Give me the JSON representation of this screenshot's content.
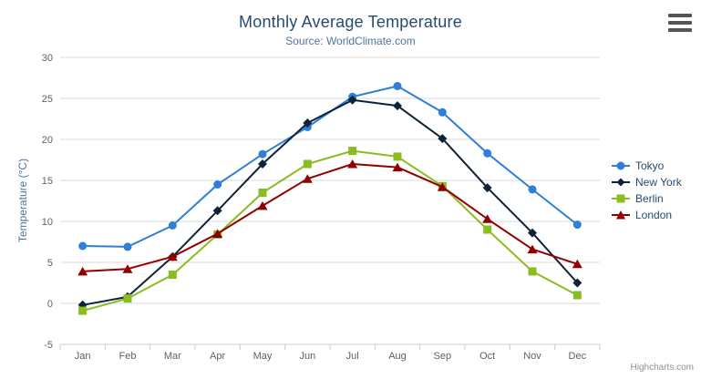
{
  "credits": "Highcharts.com",
  "chart_data": {
    "type": "line",
    "title": "Monthly Average Temperature",
    "subtitle": "Source: WorldClimate.com",
    "ylabel": "Temperature (°C)",
    "xlabel": "",
    "ylim": [
      -5,
      30
    ],
    "yticks": [
      -5,
      0,
      5,
      10,
      15,
      20,
      25,
      30
    ],
    "grid": true,
    "legend_position": "right",
    "categories": [
      "Jan",
      "Feb",
      "Mar",
      "Apr",
      "May",
      "Jun",
      "Jul",
      "Aug",
      "Sep",
      "Oct",
      "Nov",
      "Dec"
    ],
    "series": [
      {
        "name": "Tokyo",
        "marker": "circle",
        "color": "#2f7ed8",
        "values": [
          7.0,
          6.9,
          9.5,
          14.5,
          18.2,
          21.5,
          25.2,
          26.5,
          23.3,
          18.3,
          13.9,
          9.6
        ]
      },
      {
        "name": "New York",
        "marker": "diamond",
        "color": "#0d233a",
        "values": [
          -0.2,
          0.8,
          5.7,
          11.3,
          17.0,
          22.0,
          24.8,
          24.1,
          20.1,
          14.1,
          8.6,
          2.5
        ]
      },
      {
        "name": "Berlin",
        "marker": "square",
        "color": "#8bbc21",
        "values": [
          -0.9,
          0.6,
          3.5,
          8.4,
          13.5,
          17.0,
          18.6,
          17.9,
          14.3,
          9.0,
          3.9,
          1.0
        ]
      },
      {
        "name": "London",
        "marker": "triangle",
        "color": "#910000",
        "values": [
          3.9,
          4.2,
          5.7,
          8.5,
          11.9,
          15.2,
          17.0,
          16.6,
          14.2,
          10.3,
          6.6,
          4.8
        ]
      }
    ],
    "axis_colors": {
      "grid": "#d8d8d8",
      "axis_line": "#c0d0e0",
      "tick_label": "#606060"
    }
  }
}
